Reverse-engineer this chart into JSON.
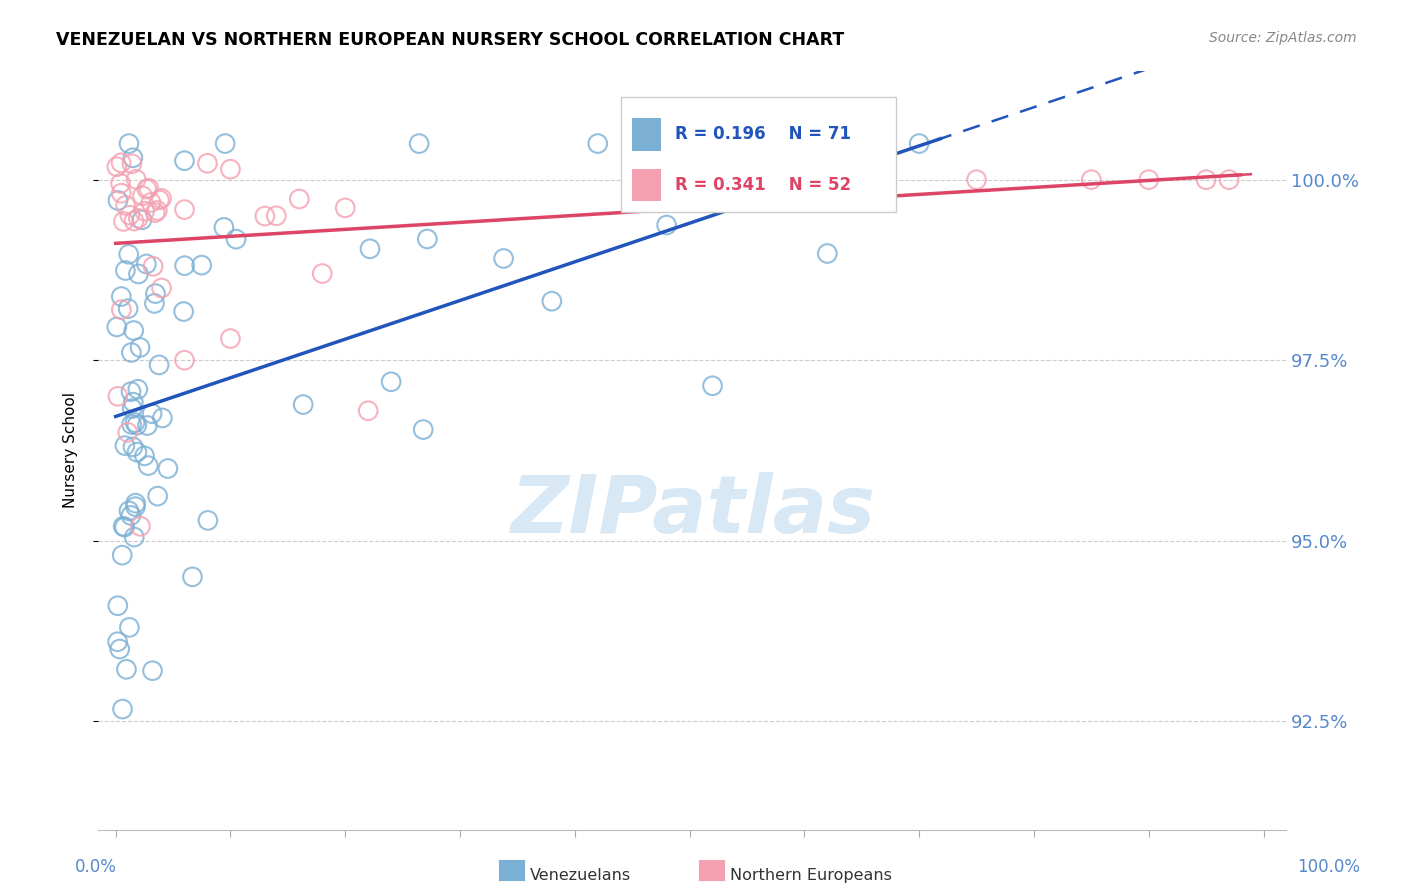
{
  "title": "VENEZUELAN VS NORTHERN EUROPEAN NURSERY SCHOOL CORRELATION CHART",
  "source": "Source: ZipAtlas.com",
  "ylabel": "Nursery School",
  "yticks": [
    92.5,
    95.0,
    97.5,
    100.0
  ],
  "ytick_labels": [
    "92.5%",
    "95.0%",
    "97.5%",
    "100.0%"
  ],
  "xlim": [
    0.0,
    1.0
  ],
  "ylim": [
    91.0,
    101.5
  ],
  "blue_R": 0.196,
  "blue_N": 71,
  "pink_R": 0.341,
  "pink_N": 52,
  "blue_color": "#7BAFD4",
  "pink_color": "#F4A0B0",
  "trend_blue": "#2255BB",
  "trend_pink": "#DD4466",
  "blue_label": "Venezuelans",
  "pink_label": "Northern Europeans",
  "watermark_color": "#D8E8F5",
  "grid_color": "#CCCCCC",
  "tick_label_color": "#5588CC",
  "legend_text_color_blue": "#2255BB",
  "legend_text_color_pink": "#DD4466"
}
